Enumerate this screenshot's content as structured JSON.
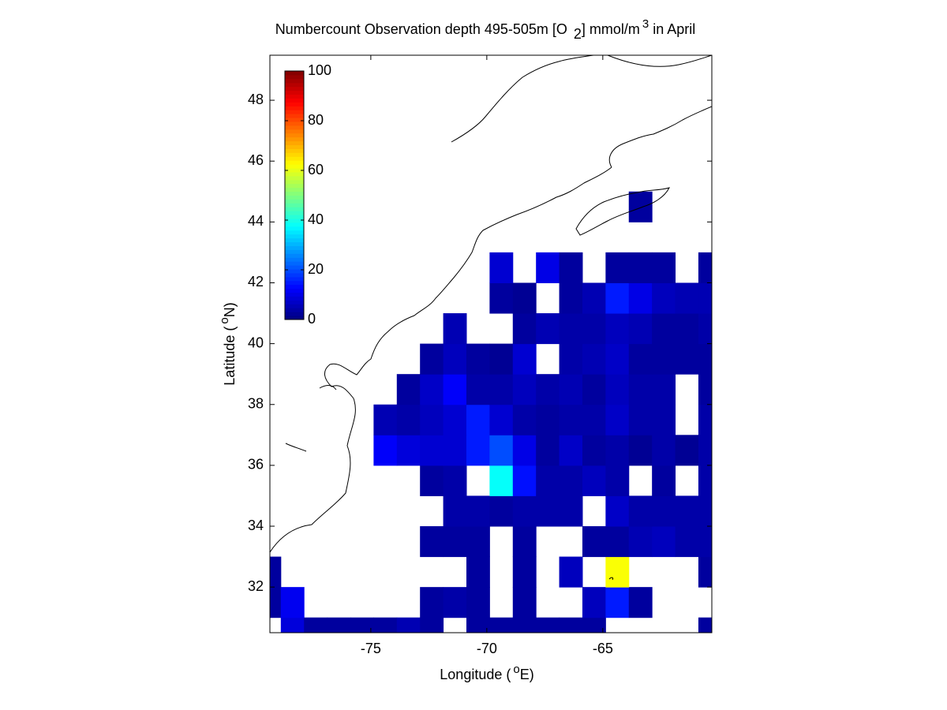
{
  "chart_data": {
    "type": "heatmap",
    "title": [
      {
        "text": "Numbercount Observation depth 495-505m [O"
      },
      {
        "text": "2",
        "shift": "sub"
      },
      {
        "text": "] mmol/m"
      },
      {
        "text": "3",
        "shift": "super"
      },
      {
        "text": " in April"
      }
    ],
    "x_label": [
      {
        "text": "Longitude ("
      },
      {
        "text": "o",
        "shift": "super"
      },
      {
        "text": "E)"
      }
    ],
    "y_label": [
      {
        "text": "Latitude ("
      },
      {
        "text": "o",
        "shift": "super"
      },
      {
        "text": "N)"
      }
    ],
    "x": [
      -79.38,
      -78.38,
      -77.38,
      -76.38,
      -75.38,
      -74.38,
      -73.38,
      -72.38,
      -71.38,
      -70.38,
      -69.38,
      -68.38,
      -67.38,
      -66.38,
      -65.38,
      -64.38,
      -63.38,
      -62.38,
      -61.38,
      -60.38
    ],
    "y": [
      30.5,
      31.5,
      32.5,
      33.5,
      34.5,
      35.5,
      36.5,
      37.5,
      38.5,
      39.5,
      40.5,
      41.5,
      42.5,
      43.5,
      44.5
    ],
    "z": [
      [
        null,
        9,
        3,
        3,
        3,
        3,
        5,
        3,
        null,
        3,
        3,
        3,
        3,
        3,
        3,
        null,
        null,
        null,
        null,
        3
      ],
      [
        3,
        11,
        null,
        null,
        null,
        null,
        null,
        3,
        4,
        3,
        null,
        3,
        null,
        null,
        6,
        15,
        3,
        null,
        null,
        null
      ],
      [
        3,
        null,
        null,
        null,
        null,
        null,
        null,
        null,
        null,
        3,
        null,
        3,
        null,
        6,
        null,
        62,
        null,
        null,
        null,
        3
      ],
      [
        null,
        null,
        null,
        null,
        null,
        null,
        null,
        3,
        3,
        3,
        null,
        3,
        null,
        null,
        3,
        3,
        5,
        6,
        4,
        4
      ],
      [
        null,
        null,
        null,
        null,
        null,
        null,
        null,
        null,
        4,
        4,
        3,
        4,
        4,
        4,
        null,
        7,
        4,
        4,
        4,
        4
      ],
      [
        null,
        null,
        null,
        null,
        null,
        null,
        null,
        3,
        4,
        null,
        38,
        14,
        4,
        4,
        6,
        4,
        null,
        3,
        null,
        4
      ],
      [
        null,
        null,
        null,
        null,
        null,
        12,
        9,
        8,
        8,
        15,
        20,
        10,
        3,
        7,
        3,
        4,
        2,
        4,
        2,
        4
      ],
      [
        null,
        null,
        null,
        null,
        null,
        5,
        4,
        6,
        8,
        15,
        8,
        4,
        3,
        4,
        4,
        7,
        4,
        4,
        null,
        4
      ],
      [
        null,
        null,
        null,
        null,
        null,
        null,
        3,
        7,
        12,
        4,
        4,
        6,
        4,
        5,
        3,
        6,
        4,
        4,
        null,
        3
      ],
      [
        null,
        null,
        null,
        null,
        null,
        null,
        null,
        3,
        6,
        3,
        2,
        8,
        null,
        4,
        5,
        7,
        3,
        3,
        3,
        3
      ],
      [
        null,
        null,
        null,
        null,
        null,
        null,
        null,
        null,
        5,
        null,
        null,
        3,
        5,
        4,
        4,
        6,
        5,
        3,
        3,
        4
      ],
      [
        null,
        null,
        null,
        null,
        null,
        null,
        null,
        null,
        null,
        null,
        3,
        2,
        null,
        3,
        5,
        15,
        10,
        6,
        5,
        5
      ],
      [
        null,
        null,
        null,
        null,
        null,
        null,
        null,
        null,
        null,
        null,
        8,
        null,
        10,
        3,
        null,
        3,
        3,
        3,
        null,
        3
      ],
      [
        null,
        null,
        null,
        null,
        null,
        null,
        null,
        null,
        null,
        null,
        null,
        null,
        null,
        null,
        null,
        null,
        null,
        null,
        null,
        null
      ],
      [
        null,
        null,
        null,
        null,
        null,
        null,
        null,
        null,
        null,
        null,
        null,
        null,
        null,
        null,
        null,
        null,
        3,
        null,
        null,
        null
      ]
    ],
    "xlim": [
      -79.35,
      -60.3
    ],
    "ylim": [
      30.5,
      49.48
    ],
    "xticks": [
      -75,
      -70,
      -65
    ],
    "yticks": [
      32,
      34,
      36,
      38,
      40,
      42,
      44,
      46,
      48
    ],
    "colormap": "jet",
    "clim": [
      0,
      100
    ],
    "cticks": [
      0,
      20,
      40,
      60,
      80,
      100
    ]
  }
}
